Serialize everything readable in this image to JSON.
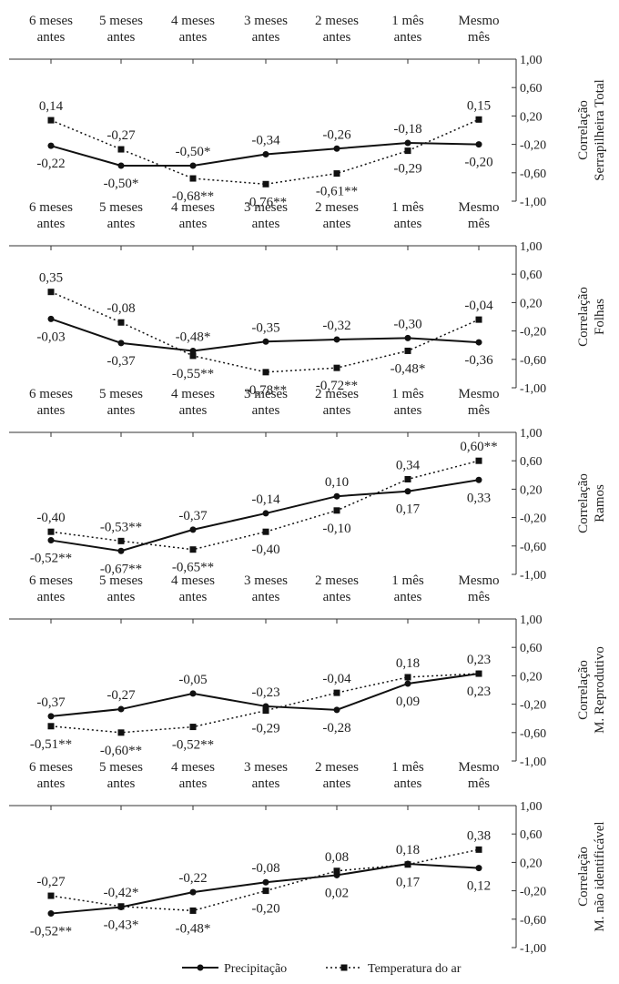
{
  "chart_data": [
    {
      "type": "line",
      "categories": [
        "6 meses antes",
        "5 meses antes",
        "4 meses antes",
        "3 meses antes",
        "2 meses antes",
        "1 mês antes",
        "Mesmo mês"
      ],
      "ylabel": "Correlação Serrapilheira Total",
      "ylim": [
        -1.0,
        1.0
      ],
      "yticks": [
        "1,00",
        "0,60",
        "0,20",
        "-0,20",
        "-0,60",
        "-1,00"
      ],
      "series": [
        {
          "name": "Precipitação",
          "values": [
            -0.22,
            -0.5,
            -0.5,
            -0.34,
            -0.26,
            -0.18,
            -0.2
          ],
          "labels": [
            "-0,22",
            "-0,50*",
            "-0,50*",
            "-0,34",
            "-0,26",
            "-0,18",
            "-0,20"
          ]
        },
        {
          "name": "Temperatura do ar",
          "values": [
            0.14,
            -0.27,
            -0.68,
            -0.76,
            -0.61,
            -0.29,
            0.15
          ],
          "labels": [
            "0,14",
            "-0,27",
            "-0,68**",
            "-0,76**",
            "-0,61**",
            "-0,29",
            "0,15"
          ]
        }
      ]
    },
    {
      "type": "line",
      "categories": [
        "6 meses antes",
        "5 meses antes",
        "4 meses antes",
        "3 meses antes",
        "2 meses antes",
        "1 mês antes",
        "Mesmo mês"
      ],
      "ylabel": "Correlação Folhas",
      "ylim": [
        -1.0,
        1.0
      ],
      "yticks": [
        "1,00",
        "0,60",
        "0,20",
        "-0,20",
        "-0,60",
        "-1,00"
      ],
      "series": [
        {
          "name": "Precipitação",
          "values": [
            -0.03,
            -0.37,
            -0.48,
            -0.35,
            -0.32,
            -0.3,
            -0.36
          ],
          "labels": [
            "-0,03",
            "-0,37",
            "-0,48*",
            "-0,35",
            "-0,32",
            "-0,30",
            "-0,36"
          ]
        },
        {
          "name": "Temperatura do ar",
          "values": [
            0.35,
            -0.08,
            -0.55,
            -0.78,
            -0.72,
            -0.48,
            -0.04
          ],
          "labels": [
            "0,35",
            "-0,08",
            "-0,55**",
            "-0,78**",
            "-0,72**",
            "-0,48*",
            "-0,04"
          ]
        }
      ]
    },
    {
      "type": "line",
      "categories": [
        "6 meses antes",
        "5 meses antes",
        "4 meses antes",
        "3 meses antes",
        "2 meses antes",
        "1 mês antes",
        "Mesmo mês"
      ],
      "ylabel": "Correlação Ramos",
      "ylim": [
        -1.0,
        1.0
      ],
      "yticks": [
        "1,00",
        "0,60",
        "0,20",
        "-0,20",
        "-0,60",
        "-1,00"
      ],
      "series": [
        {
          "name": "Precipitação",
          "values": [
            -0.52,
            -0.67,
            -0.37,
            -0.14,
            0.1,
            0.17,
            0.33
          ],
          "labels": [
            "-0,52**",
            "-0,67**",
            "-0,37",
            "-0,14",
            "0,10",
            "0,17",
            "0,33"
          ]
        },
        {
          "name": "Temperatura do ar",
          "values": [
            -0.4,
            -0.53,
            -0.65,
            -0.4,
            -0.1,
            0.34,
            0.6
          ],
          "labels": [
            "-0,40",
            "-0,53**",
            "-0,65**",
            "-0,40",
            "-0,10",
            "0,34",
            "0,60**"
          ]
        }
      ]
    },
    {
      "type": "line",
      "categories": [
        "6 meses antes",
        "5 meses antes",
        "4 meses antes",
        "3 meses antes",
        "2 meses antes",
        "1 mês antes",
        "Mesmo mês"
      ],
      "ylabel": "Correlação M. Reprodutivo",
      "ylim": [
        -1.0,
        1.0
      ],
      "yticks": [
        "1,00",
        "0,60",
        "0,20",
        "-0,20",
        "-0,60",
        "-1,00"
      ],
      "series": [
        {
          "name": "Precipitação",
          "values": [
            -0.37,
            -0.27,
            -0.05,
            -0.23,
            -0.28,
            0.09,
            0.23
          ],
          "labels": [
            "-0,37",
            "-0,27",
            "-0,05",
            "-0,23",
            "-0,28",
            "0,09",
            "0,23"
          ]
        },
        {
          "name": "Temperatura do ar",
          "values": [
            -0.51,
            -0.6,
            -0.52,
            -0.29,
            -0.04,
            0.18,
            0.23
          ],
          "labels": [
            "-0,51**",
            "-0,60**",
            "-0,52**",
            "-0,29",
            "-0,04",
            "0,18",
            "0,23"
          ]
        }
      ]
    },
    {
      "type": "line",
      "categories": [
        "6 meses antes",
        "5 meses antes",
        "4 meses antes",
        "3 meses antes",
        "2 meses antes",
        "1 mês antes",
        "Mesmo mês"
      ],
      "ylabel": "Correlação M. não identificável",
      "ylim": [
        -1.0,
        1.0
      ],
      "yticks": [
        "1,00",
        "0,60",
        "0,20",
        "-0,20",
        "-0,60",
        "-1,00"
      ],
      "series": [
        {
          "name": "Precipitação",
          "values": [
            -0.52,
            -0.43,
            -0.22,
            -0.08,
            0.02,
            0.18,
            0.12
          ],
          "labels": [
            "-0,52**",
            "-0,43*",
            "-0,22",
            "-0,08",
            "0,02",
            "0,18",
            "0,12"
          ]
        },
        {
          "name": "Temperatura do ar",
          "values": [
            -0.27,
            -0.42,
            -0.48,
            -0.2,
            0.08,
            0.17,
            0.38
          ],
          "labels": [
            "-0,27",
            "-0,42*",
            "-0,48*",
            "-0,20",
            "0,08",
            "0,17",
            "0,38"
          ]
        }
      ]
    }
  ],
  "legend": {
    "items": [
      {
        "label": "Precipitação",
        "style": "solid",
        "marker": "circle"
      },
      {
        "label": "Temperatura do ar",
        "style": "dotted",
        "marker": "square"
      }
    ],
    "position": "bottom-center"
  },
  "colors": {
    "line": "#111111",
    "text": "#222222",
    "axis": "#333333"
  }
}
